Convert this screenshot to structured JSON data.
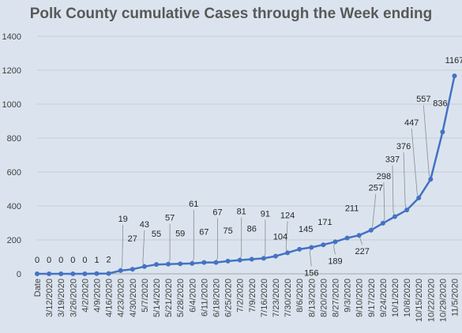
{
  "chart_data": {
    "type": "line",
    "title": "Polk County cumulative Cases through the Week ending",
    "xlabel": "",
    "ylabel": "",
    "ylim": [
      0,
      1400
    ],
    "yticks": [
      0,
      200,
      400,
      600,
      800,
      1000,
      1200,
      1400
    ],
    "grid": true,
    "legend": "none",
    "line_color": "#4472c4",
    "categories": [
      "Date",
      "3/12/2020",
      "3/19/2020",
      "3/26/2020",
      "4/2/2020",
      "4/9/2020",
      "4/16/2020",
      "4/23/2020",
      "4/30/2020",
      "5/7/2020",
      "5/14/2020",
      "5/21/2020",
      "5/28/2020",
      "6/4/2020",
      "6/11/2020",
      "6/18/2020",
      "6/25/2020",
      "7/2/2020",
      "7/9/2020",
      "7/16/2020",
      "7/23/2020",
      "7/30/2020",
      "8/6/2020",
      "8/13/2020",
      "8/20/2020",
      "8/27/2020",
      "9/3/2020",
      "9/10/2020",
      "9/17/2020",
      "9/24/2020",
      "10/1/2020",
      "10/8/2020",
      "10/15/2020",
      "10/22/2020",
      "10/29/2020",
      "11/5/2020"
    ],
    "values": [
      0,
      0,
      0,
      0,
      0,
      1,
      2,
      19,
      27,
      43,
      55,
      57,
      59,
      61,
      67,
      67,
      75,
      81,
      86,
      91,
      104,
      124,
      145,
      156,
      171,
      189,
      211,
      227,
      257,
      298,
      337,
      376,
      447,
      557,
      836,
      1167
    ]
  }
}
